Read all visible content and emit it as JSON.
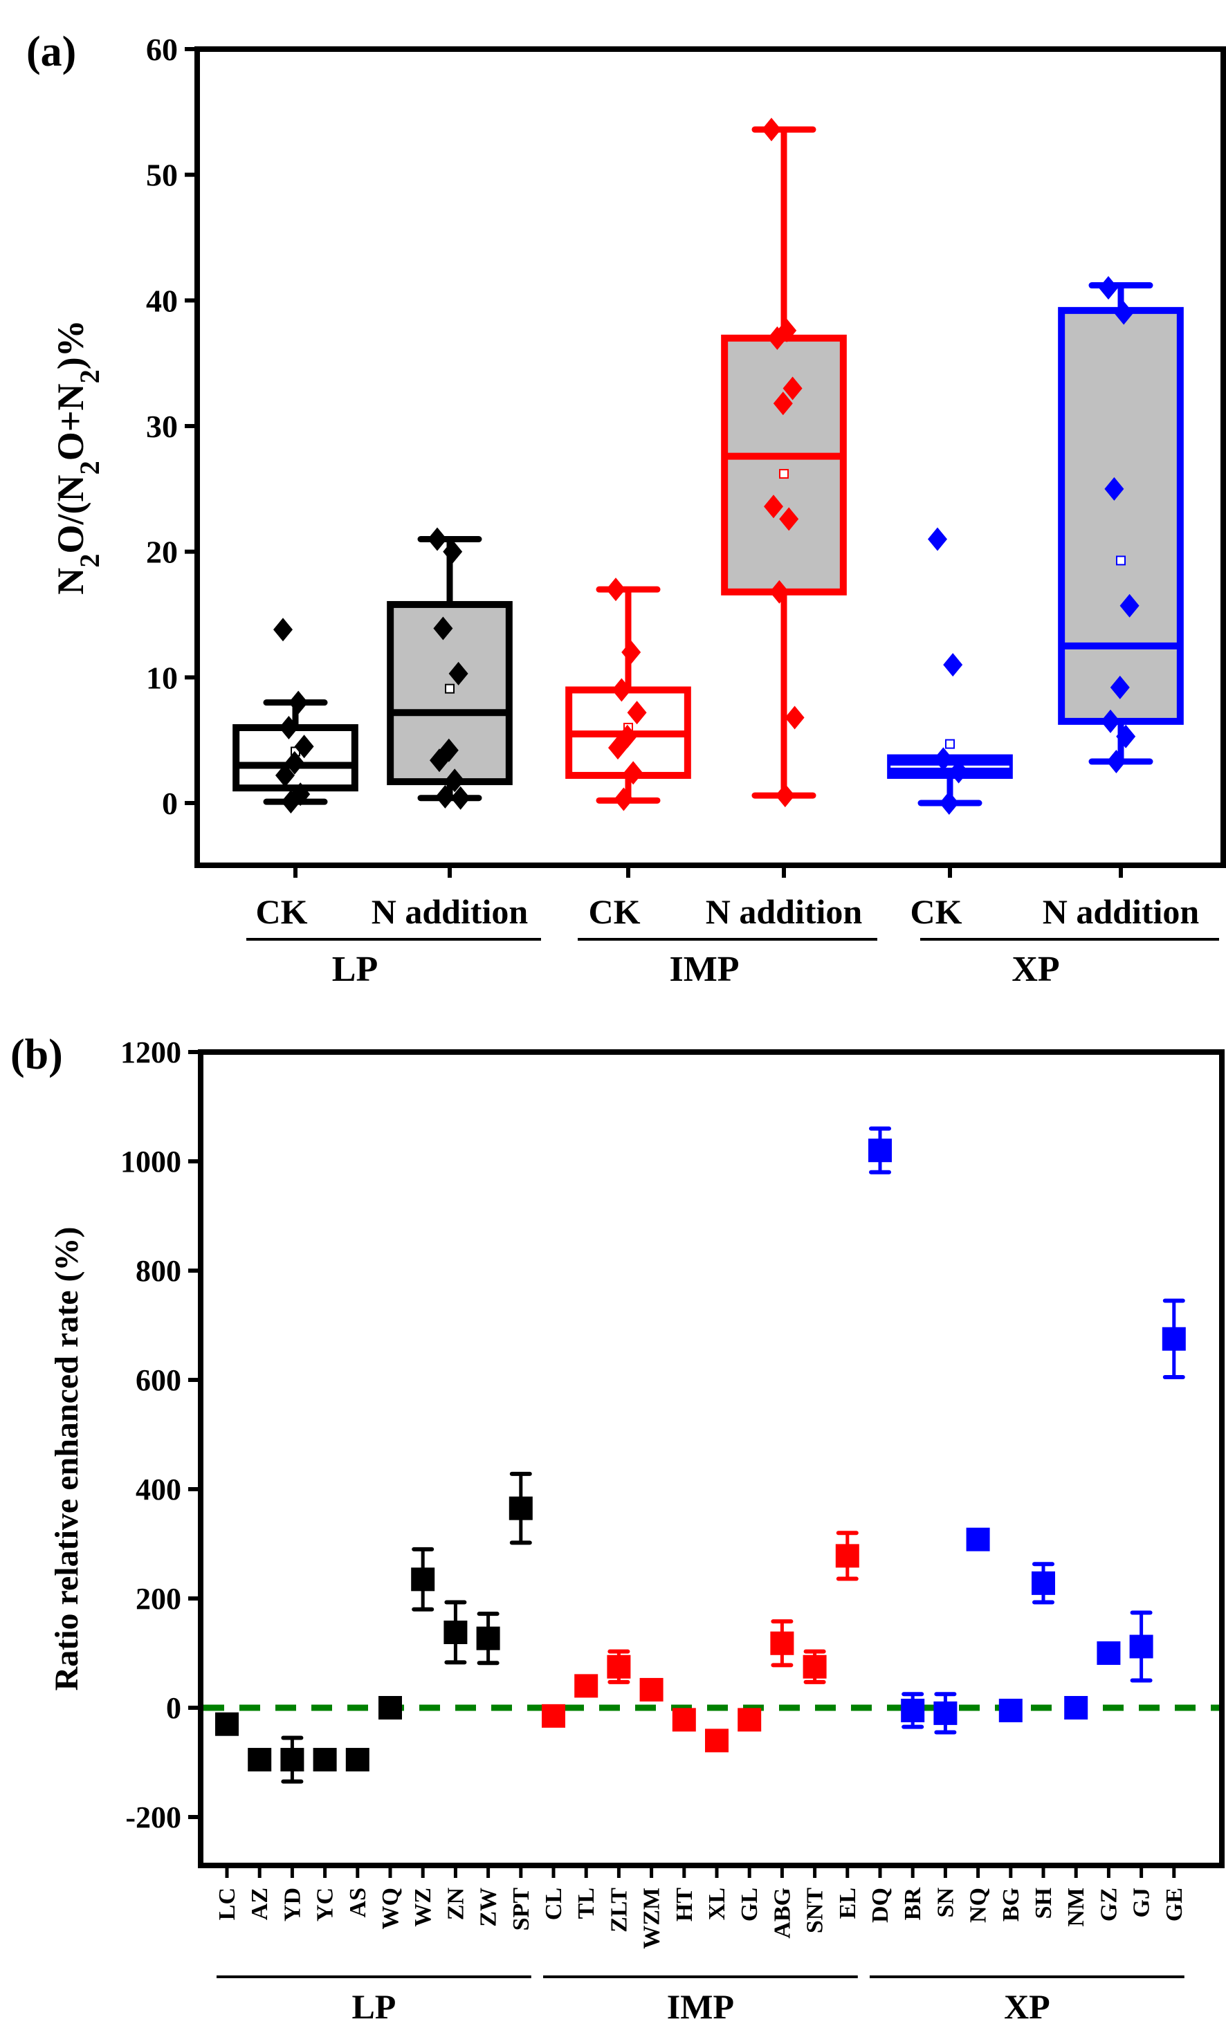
{
  "chart_data": [
    {
      "type": "box",
      "panel_label": "(a)",
      "ylabel": "N2O/(N2O+N2)%",
      "ylim": [
        -5,
        60
      ],
      "yticks": [
        0,
        10,
        20,
        30,
        40,
        50,
        60
      ],
      "grid": false,
      "groups": [
        {
          "name": "LP",
          "color": "#000000"
        },
        {
          "name": "IMP",
          "color": "#ff0000"
        },
        {
          "name": "XP",
          "color": "#0000ff"
        }
      ],
      "boxes": [
        {
          "group": "LP",
          "label": "CK",
          "filled": false,
          "q1": 1.2,
          "median": 3.0,
          "q3": 6.0,
          "whisker_low": 0.1,
          "whisker_high": 8.0,
          "mean": 4.1,
          "points": [
            13.8,
            8.0,
            6.0,
            4.5,
            3.2,
            2.2,
            0.7,
            0.1
          ]
        },
        {
          "group": "LP",
          "label": "N addition",
          "filled": true,
          "q1": 1.7,
          "median": 7.2,
          "q3": 15.8,
          "whisker_low": 0.4,
          "whisker_high": 21.0,
          "mean": 9.1,
          "points": [
            21.0,
            20.0,
            13.9,
            10.3,
            4.2,
            3.4,
            1.8,
            0.5,
            0.4
          ]
        },
        {
          "group": "IMP",
          "label": "CK",
          "filled": false,
          "q1": 2.2,
          "median": 5.5,
          "q3": 9.0,
          "whisker_low": 0.2,
          "whisker_high": 17.0,
          "mean": 6.0,
          "points": [
            17.0,
            12.0,
            9.0,
            7.2,
            5.3,
            4.4,
            2.4,
            0.3
          ]
        },
        {
          "group": "IMP",
          "label": "N addition",
          "filled": true,
          "q1": 16.8,
          "median": 27.6,
          "q3": 37.0,
          "whisker_low": 0.6,
          "whisker_high": 53.6,
          "mean": 26.2,
          "points": [
            53.6,
            37.6,
            37.0,
            33.0,
            31.8,
            23.6,
            22.6,
            16.8,
            6.8,
            0.6
          ]
        },
        {
          "group": "XP",
          "label": "CK",
          "filled": true,
          "q1": 2.2,
          "median": 2.9,
          "q3": 3.6,
          "whisker_low": 0.0,
          "whisker_high": 3.6,
          "mean": 4.7,
          "points": [
            21.0,
            11.0,
            3.5,
            2.5,
            0.0
          ]
        },
        {
          "group": "XP",
          "label": "N addition",
          "filled": true,
          "q1": 6.5,
          "median": 12.5,
          "q3": 39.2,
          "whisker_low": 3.3,
          "whisker_high": 41.2,
          "mean": 19.3,
          "points": [
            41.0,
            39.0,
            25.0,
            15.7,
            9.2,
            6.5,
            5.3,
            3.3
          ]
        }
      ]
    },
    {
      "type": "scatter",
      "panel_label": "(b)",
      "ylabel": "Ratio relative enhanced rate (%)",
      "ylim": [
        -300,
        1200
      ],
      "yticks": [
        -200,
        0,
        200,
        400,
        600,
        800,
        1000,
        1200
      ],
      "grid": false,
      "reference_line": {
        "y": 0,
        "style": "dashed",
        "color": "#008000"
      },
      "groups": [
        {
          "name": "LP",
          "color": "#000000",
          "categories": [
            "LC",
            "AZ",
            "YD",
            "YC",
            "AS",
            "WQ",
            "WZ",
            "ZN",
            "ZW",
            "SPT"
          ],
          "values": [
            -30,
            -95,
            -95,
            -95,
            -95,
            0,
            235,
            138,
            127,
            365
          ],
          "errors": [
            5,
            5,
            40,
            15,
            5,
            5,
            55,
            55,
            45,
            63
          ]
        },
        {
          "name": "IMP",
          "color": "#ff0000",
          "categories": [
            "CL",
            "TL",
            "ZLT",
            "WZM",
            "HT",
            "XL",
            "GL",
            "ABG",
            "SNT",
            "EL"
          ],
          "values": [
            -15,
            40,
            75,
            33,
            -22,
            -60,
            -22,
            118,
            75,
            278
          ],
          "errors": [
            5,
            5,
            28,
            5,
            5,
            5,
            5,
            40,
            28,
            42
          ]
        },
        {
          "name": "XP",
          "color": "#0000ff",
          "categories": [
            "DQ",
            "BR",
            "SN",
            "NQ",
            "BG",
            "SH",
            "NM",
            "GZ",
            "GJ",
            "GE"
          ],
          "values": [
            1020,
            -5,
            -10,
            308,
            -5,
            228,
            0,
            100,
            112,
            675
          ],
          "errors": [
            40,
            30,
            35,
            10,
            5,
            35,
            5,
            5,
            62,
            70
          ]
        }
      ]
    }
  ]
}
